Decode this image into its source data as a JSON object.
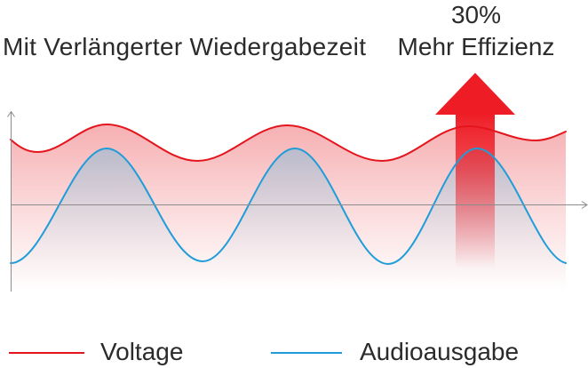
{
  "headline": {
    "playback": "Mit Verlängerter Wiedergabezeit",
    "efficiency_value": "30%",
    "efficiency_label": "Mehr Effizienz"
  },
  "legend": {
    "voltage": "Voltage",
    "audio_output": "Audioausgabe"
  },
  "colors": {
    "voltage": "#e4151d",
    "audio_output": "#1f9dd9",
    "arrow": "#ee1c25"
  }
}
